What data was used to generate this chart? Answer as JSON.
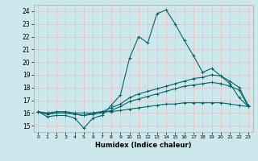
{
  "xlabel": "Humidex (Indice chaleur)",
  "xlim": [
    -0.5,
    23.5
  ],
  "ylim": [
    14.5,
    24.5
  ],
  "yticks": [
    15,
    16,
    17,
    18,
    19,
    20,
    21,
    22,
    23,
    24
  ],
  "xticks": [
    0,
    1,
    2,
    3,
    4,
    5,
    6,
    7,
    8,
    9,
    10,
    11,
    12,
    13,
    14,
    15,
    16,
    17,
    18,
    19,
    20,
    21,
    22,
    23
  ],
  "background_color": "#cde8ec",
  "grid_color": "#f0c0c0",
  "line_color": "#006666",
  "line1_y": [
    16.1,
    15.7,
    15.8,
    15.8,
    15.6,
    14.8,
    15.6,
    15.8,
    16.6,
    17.4,
    20.3,
    22.0,
    21.5,
    23.8,
    24.1,
    23.0,
    21.7,
    20.5,
    19.2,
    19.5,
    18.9,
    18.3,
    17.2,
    16.5
  ],
  "line2_y": [
    16.1,
    15.9,
    16.0,
    16.0,
    15.9,
    15.8,
    16.0,
    16.1,
    16.4,
    16.7,
    17.2,
    17.5,
    17.7,
    17.9,
    18.1,
    18.3,
    18.5,
    18.7,
    18.8,
    19.0,
    18.9,
    18.5,
    18.0,
    16.6
  ],
  "line3_y": [
    16.1,
    15.9,
    16.0,
    16.0,
    15.9,
    15.8,
    15.9,
    16.0,
    16.2,
    16.5,
    16.9,
    17.1,
    17.3,
    17.5,
    17.7,
    17.9,
    18.1,
    18.2,
    18.3,
    18.4,
    18.3,
    18.1,
    17.8,
    16.5
  ],
  "line4_y": [
    16.1,
    16.0,
    16.1,
    16.1,
    16.0,
    16.0,
    16.0,
    16.1,
    16.1,
    16.2,
    16.3,
    16.4,
    16.5,
    16.6,
    16.7,
    16.7,
    16.8,
    16.8,
    16.8,
    16.8,
    16.8,
    16.7,
    16.6,
    16.5
  ]
}
